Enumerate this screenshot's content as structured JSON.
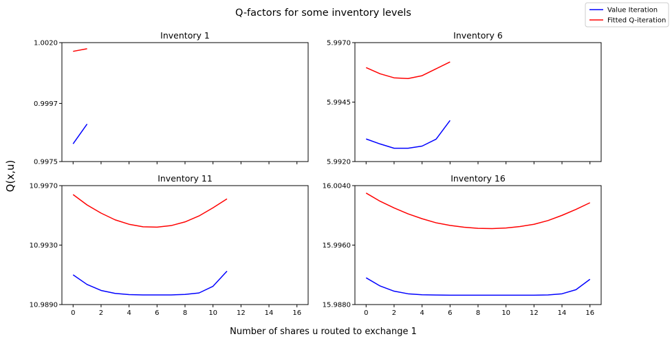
{
  "figure": {
    "title": "Q-factors for some inventory levels",
    "xlabel": "Number of shares u routed to exchange 1",
    "ylabel": "Q(x,u)"
  },
  "legend": {
    "placement": "top-right",
    "entries": [
      {
        "label": "Value Iteration",
        "color": "#0000ff"
      },
      {
        "label": "Fitted Q-iteration",
        "color": "#ff0000"
      }
    ]
  },
  "chart_data": [
    {
      "type": "line",
      "title": "Inventory 1",
      "xlim": [
        -0.8,
        16.8
      ],
      "ylim": [
        0.9975,
        1.002
      ],
      "xticks": [
        0,
        2,
        4,
        6,
        8,
        10,
        12,
        14,
        16
      ],
      "yticks": [
        0.9975,
        0.9997,
        1.002
      ],
      "ytick_labels": [
        "0.9975",
        "0.9997",
        "1.0020"
      ],
      "show_xtick_labels": false,
      "series": [
        {
          "name": "Value Iteration",
          "color": "#0000ff",
          "x": [
            0,
            1
          ],
          "y": [
            0.99817,
            0.99892
          ]
        },
        {
          "name": "Fitted Q-iteration",
          "color": "#ff0000",
          "x": [
            0,
            1
          ],
          "y": [
            1.00167,
            1.00177
          ]
        }
      ]
    },
    {
      "type": "line",
      "title": "Inventory 6",
      "xlim": [
        -0.8,
        16.8
      ],
      "ylim": [
        5.992,
        5.997
      ],
      "xticks": [
        0,
        2,
        4,
        6,
        8,
        10,
        12,
        14,
        16
      ],
      "yticks": [
        5.992,
        5.9945,
        5.997
      ],
      "ytick_labels": [
        "5.9920",
        "5.9945",
        "5.9970"
      ],
      "show_xtick_labels": false,
      "series": [
        {
          "name": "Value Iteration",
          "color": "#0000ff",
          "x": [
            0,
            1,
            2,
            3,
            4,
            5,
            6
          ],
          "y": [
            5.99295,
            5.99274,
            5.99256,
            5.99256,
            5.99265,
            5.99294,
            5.99373
          ]
        },
        {
          "name": "Fitted Q-iteration",
          "color": "#ff0000",
          "x": [
            0,
            1,
            2,
            3,
            4,
            5,
            6
          ],
          "y": [
            5.99595,
            5.99569,
            5.99552,
            5.99549,
            5.99561,
            5.9959,
            5.99619
          ]
        }
      ]
    },
    {
      "type": "line",
      "title": "Inventory 11",
      "xlim": [
        -0.8,
        16.8
      ],
      "ylim": [
        10.989,
        10.997
      ],
      "xticks": [
        0,
        2,
        4,
        6,
        8,
        10,
        12,
        14,
        16
      ],
      "yticks": [
        10.989,
        10.993,
        10.997
      ],
      "ytick_labels": [
        "10.9890",
        "10.9930",
        "10.9970"
      ],
      "show_xtick_labels": true,
      "series": [
        {
          "name": "Value Iteration",
          "color": "#0000ff",
          "x": [
            0,
            1,
            2,
            3,
            4,
            5,
            6,
            7,
            8,
            9,
            10,
            11
          ],
          "y": [
            10.991,
            10.99035,
            10.98995,
            10.98975,
            10.98967,
            10.98965,
            10.98965,
            10.98965,
            10.98968,
            10.98978,
            10.99023,
            10.99125
          ]
        },
        {
          "name": "Fitted Q-iteration",
          "color": "#ff0000",
          "x": [
            0,
            1,
            2,
            3,
            4,
            5,
            6,
            7,
            8,
            9,
            10,
            11
          ],
          "y": [
            10.9964,
            10.9957,
            10.99515,
            10.9947,
            10.9944,
            10.99423,
            10.99421,
            10.99431,
            10.99456,
            10.99496,
            10.99551,
            10.99611
          ]
        }
      ]
    },
    {
      "type": "line",
      "title": "Inventory 16",
      "xlim": [
        -0.8,
        16.8
      ],
      "ylim": [
        15.988,
        16.004
      ],
      "xticks": [
        0,
        2,
        4,
        6,
        8,
        10,
        12,
        14,
        16
      ],
      "yticks": [
        15.988,
        15.996,
        16.004
      ],
      "ytick_labels": [
        "15.9880",
        "15.9960",
        "16.0040"
      ],
      "show_xtick_labels": true,
      "series": [
        {
          "name": "Value Iteration",
          "color": "#0000ff",
          "x": [
            0,
            1,
            2,
            3,
            4,
            5,
            6,
            7,
            8,
            9,
            10,
            11,
            12,
            13,
            14,
            15,
            16
          ],
          "y": [
            15.9916,
            15.9905,
            15.9898,
            15.98945,
            15.98932,
            15.98928,
            15.98926,
            15.98926,
            15.98926,
            15.98926,
            15.98926,
            15.98926,
            15.98926,
            15.9893,
            15.98945,
            15.99,
            15.9914
          ]
        },
        {
          "name": "Fitted Q-iteration",
          "color": "#ff0000",
          "x": [
            0,
            1,
            2,
            3,
            4,
            5,
            6,
            7,
            8,
            9,
            10,
            11,
            12,
            13,
            14,
            15,
            16
          ],
          "y": [
            16.003,
            16.0019,
            16.001,
            16.0002,
            15.99955,
            15.999,
            15.99865,
            15.9984,
            15.99825,
            15.99822,
            15.9983,
            15.9985,
            15.9988,
            15.9993,
            16.0,
            16.0008,
            16.0017
          ]
        }
      ]
    }
  ]
}
